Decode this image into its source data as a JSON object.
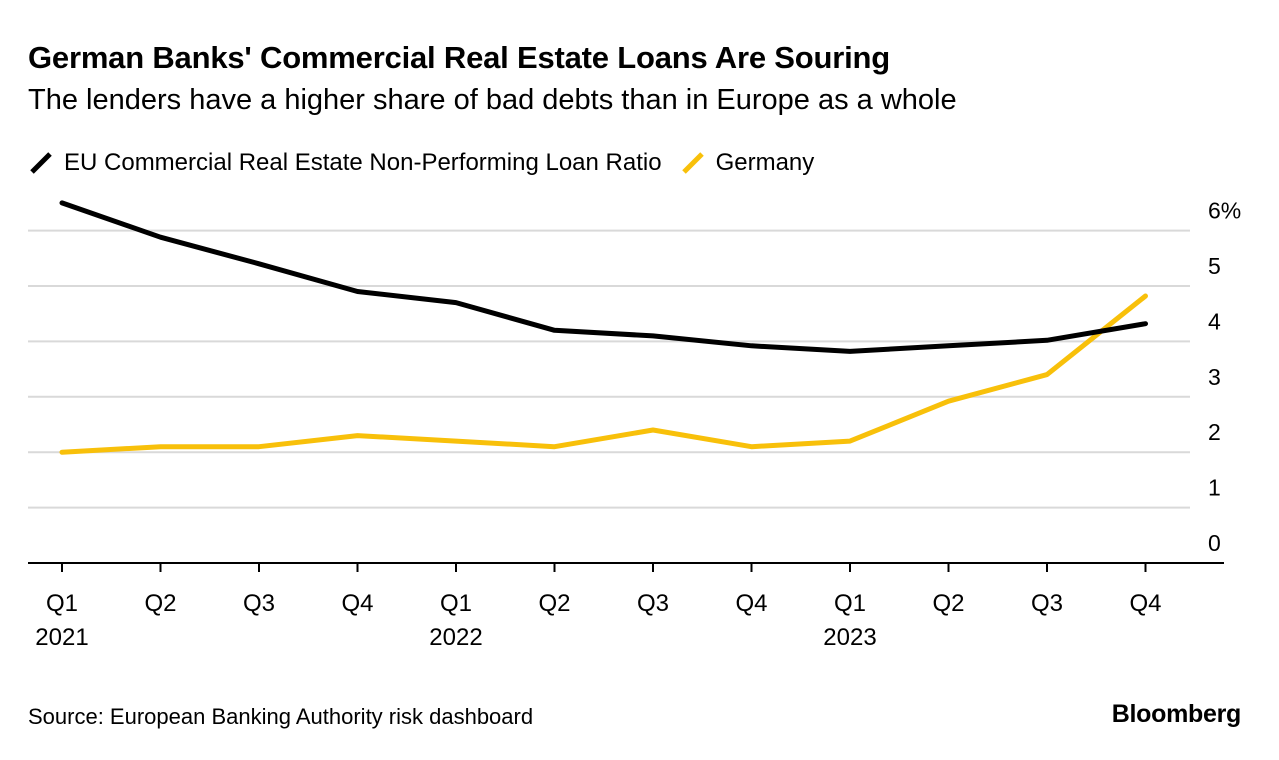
{
  "colors": {
    "eu": "#000000",
    "germany": "#f8c00a",
    "grid": "#d9d9d9",
    "axis": "#000000"
  },
  "chart_data": {
    "type": "line",
    "title": "German Banks' Commercial Real Estate Loans Are Souring",
    "subtitle": "The lenders have a higher share of bad debts than in Europe as a whole",
    "categories": [
      "Q1",
      "Q2",
      "Q3",
      "Q4",
      "Q1",
      "Q2",
      "Q3",
      "Q4",
      "Q1",
      "Q2",
      "Q3",
      "Q4"
    ],
    "year_labels": [
      "2021",
      "",
      "",
      "",
      "2022",
      "",
      "",
      "",
      "2023",
      "",
      "",
      ""
    ],
    "series": [
      {
        "name": "EU Commercial Real Estate Non-Performing Loan Ratio",
        "color": "#000000",
        "values": [
          6.5,
          5.88,
          5.4,
          4.9,
          4.7,
          4.2,
          4.1,
          3.92,
          3.82,
          3.92,
          4.02,
          4.32
        ]
      },
      {
        "name": "Germany",
        "color": "#f8c00a",
        "values": [
          2.0,
          2.1,
          2.1,
          2.3,
          2.2,
          2.1,
          2.4,
          2.1,
          2.2,
          2.92,
          3.4,
          4.82
        ]
      }
    ],
    "yticks": [
      0,
      1,
      2,
      3,
      4,
      5,
      6
    ],
    "ytick_labels": [
      "0",
      "1",
      "2",
      "3",
      "4",
      "5",
      "6%"
    ],
    "ylim": [
      0,
      6.5
    ],
    "xlabel": "",
    "ylabel": "",
    "grid": true,
    "legend_position": "top-left"
  },
  "footer": {
    "source": "Source: European Banking Authority risk dashboard",
    "brand": "Bloomberg"
  }
}
